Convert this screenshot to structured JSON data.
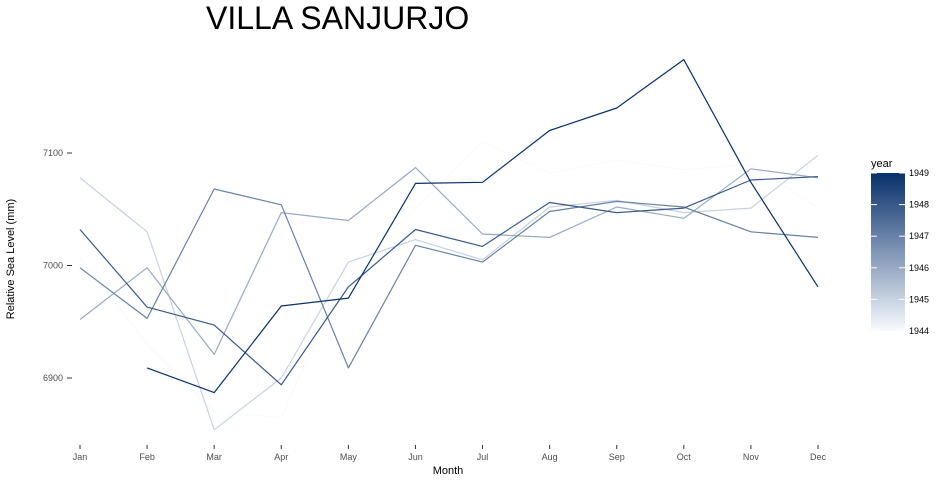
{
  "chart_data": {
    "type": "line",
    "title": "VILLA SANJURJO",
    "xlabel": "Month",
    "ylabel": "Relative Sea Level (mm)",
    "categories": [
      "Jan",
      "Feb",
      "Mar",
      "Apr",
      "May",
      "Jun",
      "Jul",
      "Aug",
      "Sep",
      "Oct",
      "Nov",
      "Dec"
    ],
    "ylim": [
      6840,
      7180
    ],
    "yticks": [
      6900,
      7000,
      7100
    ],
    "grid": false,
    "legend": {
      "title": "year",
      "placement": "right",
      "type": "colorbar",
      "labels": [
        "1949",
        "1948",
        "1947",
        "1946",
        "1945",
        "1944"
      ],
      "range": [
        1944,
        1949
      ],
      "color_low": "#f7fbff",
      "color_high": "#08306b"
    },
    "series": [
      {
        "year": 1944,
        "values": [
          7007,
          6930,
          6870,
          6865,
          7000,
          7050,
          7110,
          7082,
          7094,
          7085,
          7090,
          7051
        ]
      },
      {
        "year": 1945,
        "values": [
          7078,
          7030,
          6854,
          6900,
          7003,
          7023,
          7005,
          7052,
          7058,
          7047,
          7051,
          7098
        ]
      },
      {
        "year": 1946,
        "values": [
          6952,
          6998,
          6921,
          7047,
          7040,
          7087,
          7028,
          7025,
          7052,
          7042,
          7086,
          7078
        ]
      },
      {
        "year": 1947,
        "values": [
          6998,
          6953,
          7068,
          7054,
          6909,
          7018,
          7003,
          7048,
          7057,
          7052,
          7030,
          7025
        ]
      },
      {
        "year": 1948,
        "values": [
          7032,
          6963,
          6947,
          6894,
          6981,
          7032,
          7017,
          7056,
          7047,
          7051,
          7076,
          7079
        ]
      },
      {
        "year": 1949,
        "values": [
          null,
          6909,
          6887,
          6964,
          6971,
          7073,
          7074,
          7120,
          7140,
          7183,
          7074,
          6981
        ]
      }
    ]
  }
}
